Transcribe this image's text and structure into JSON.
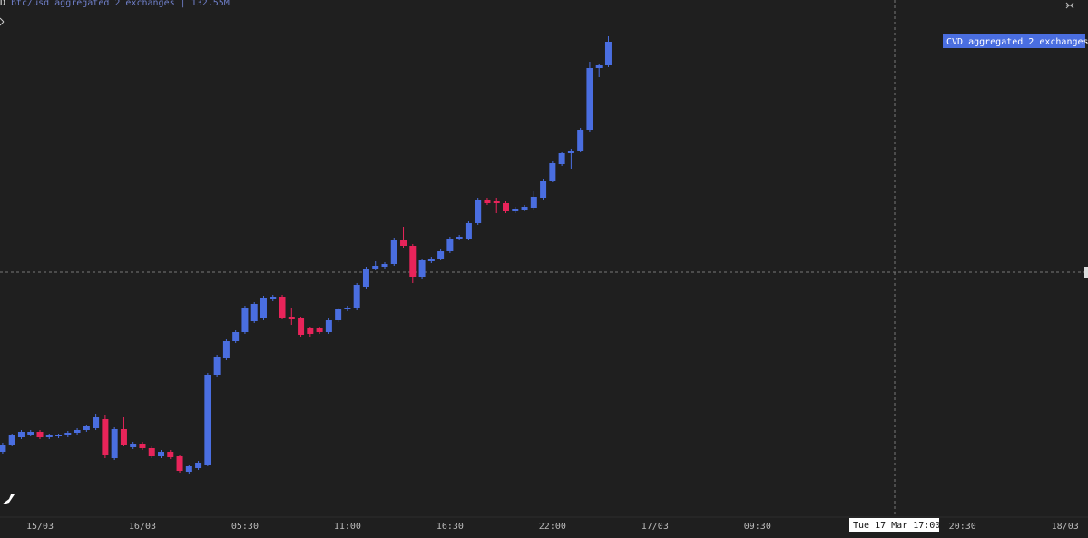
{
  "chart_data": {
    "type": "candlestick",
    "corner_label": "D",
    "series_label": "btc/usd aggregated 2 exchanges | 132.55M",
    "indicator_label": "CVD aggregated 2 exchanges",
    "crosshair_label": "Tue 17 Mar 17:00",
    "up_color": "#4a6ee0",
    "down_color": "#e8245a",
    "ylim": [
      0,
      560
    ],
    "categories": [
      null,
      null,
      null,
      null,
      "15/03",
      null,
      null,
      null,
      null,
      null,
      null,
      null,
      null,
      null,
      null,
      "16/03",
      null,
      null,
      null,
      null,
      null,
      null,
      null,
      null,
      null,
      null,
      "05:30",
      null,
      null,
      null,
      null,
      null,
      null,
      null,
      null,
      null,
      null,
      "11:00",
      null,
      null,
      null,
      null,
      null,
      null,
      null,
      null,
      null,
      null,
      "16:30",
      null,
      null,
      null,
      null,
      null,
      null,
      null,
      null,
      null,
      null,
      "22:00",
      null,
      null,
      null,
      null,
      null,
      null,
      null,
      null,
      null,
      null,
      "17/03",
      null,
      null,
      null,
      null,
      null,
      null,
      null,
      null,
      null,
      null,
      "09:30",
      null,
      null,
      null,
      null,
      null,
      null,
      null,
      null,
      null,
      null,
      null,
      null,
      null,
      null,
      null,
      null,
      null,
      null,
      null,
      null,
      null,
      "20:30",
      null,
      null,
      null,
      null,
      null,
      null,
      null,
      null,
      null,
      null,
      "18/03",
      null,
      null
    ],
    "open": [
      62,
      70,
      78,
      81,
      84,
      78,
      79,
      80,
      83,
      86,
      88,
      98,
      55,
      87,
      67,
      71,
      66,
      57,
      62,
      57,
      40,
      44,
      48,
      147,
      165,
      184,
      194,
      206,
      209,
      230,
      233,
      211,
      209,
      198,
      198,
      194,
      207,
      219,
      220,
      244,
      264,
      266,
      269,
      296,
      289,
      255,
      272,
      275,
      283,
      297,
      297,
      314,
      340,
      338,
      336,
      327,
      329,
      331,
      342,
      361,
      379,
      391,
      394,
      417,
      485,
      488,
      null,
      null,
      null,
      null,
      null,
      null,
      null,
      null,
      null,
      null,
      null,
      null,
      null,
      null,
      null,
      null,
      null,
      null,
      null,
      null,
      null,
      null,
      null,
      null,
      null,
      null,
      null,
      null,
      null,
      null,
      null,
      null,
      null,
      null,
      null,
      null,
      null,
      null,
      null,
      null,
      null,
      null,
      null,
      null,
      null,
      null,
      null,
      null,
      null,
      null,
      null
    ],
    "high": [
      72,
      82,
      86,
      86,
      86,
      82,
      82,
      85,
      88,
      92,
      104,
      103,
      89,
      100,
      73,
      73,
      68,
      64,
      64,
      59,
      48,
      52,
      149,
      169,
      186,
      196,
      223,
      227,
      234,
      235,
      235,
      220,
      211,
      200,
      200,
      209,
      221,
      223,
      248,
      266,
      272,
      271,
      298,
      310,
      291,
      275,
      277,
      285,
      299,
      301,
      316,
      342,
      342,
      342,
      338,
      332,
      334,
      350,
      363,
      382,
      393,
      396,
      419,
      492,
      490,
      520,
      null,
      null,
      null,
      null,
      null,
      null,
      null,
      null,
      null,
      null,
      null,
      null,
      null,
      null,
      null,
      null,
      null,
      null,
      null,
      null,
      null,
      null,
      null,
      null,
      null,
      null,
      null,
      null,
      null,
      null,
      null,
      null,
      null,
      null,
      null,
      null,
      null,
      null,
      null,
      null,
      null,
      null,
      null,
      null,
      null,
      null,
      null,
      null,
      null,
      null,
      null
    ],
    "low": [
      60,
      68,
      76,
      79,
      76,
      76,
      77,
      78,
      81,
      84,
      86,
      55,
      53,
      68,
      65,
      64,
      55,
      55,
      54,
      39,
      38,
      42,
      46,
      145,
      163,
      182,
      192,
      204,
      207,
      228,
      208,
      202,
      189,
      188,
      192,
      192,
      205,
      217,
      218,
      242,
      262,
      264,
      267,
      287,
      248,
      253,
      270,
      273,
      281,
      295,
      295,
      312,
      334,
      325,
      325,
      325,
      327,
      329,
      340,
      359,
      377,
      374,
      392,
      415,
      475,
      486,
      null,
      null,
      null,
      null,
      null,
      null,
      null,
      null,
      null,
      null,
      null,
      null,
      null,
      null,
      null,
      null,
      null,
      null,
      null,
      null,
      null,
      null,
      null,
      null,
      null,
      null,
      null,
      null,
      null,
      null,
      null,
      null,
      null,
      null,
      null,
      null,
      null,
      null,
      null,
      null,
      null,
      null,
      null,
      null,
      null,
      null,
      null,
      null,
      null,
      null,
      null
    ],
    "close": [
      70,
      80,
      84,
      84,
      78,
      80,
      80,
      83,
      86,
      90,
      100,
      58,
      87,
      70,
      71,
      66,
      57,
      62,
      56,
      41,
      46,
      50,
      147,
      167,
      184,
      194,
      221,
      225,
      232,
      233,
      210,
      208,
      191,
      192,
      194,
      207,
      219,
      221,
      246,
      264,
      267,
      269,
      296,
      289,
      255,
      273,
      275,
      283,
      297,
      299,
      314,
      340,
      336,
      336,
      327,
      330,
      332,
      343,
      361,
      380,
      391,
      394,
      417,
      485,
      488,
      514,
      null,
      null,
      null,
      null,
      null,
      null,
      null,
      null,
      null,
      null,
      null,
      null,
      null,
      null,
      null,
      null,
      null,
      null,
      null,
      null,
      null,
      null,
      null,
      null,
      null,
      null,
      null,
      null,
      null,
      null,
      null,
      null,
      null,
      null,
      null,
      null,
      null,
      null,
      null,
      null,
      null,
      null,
      null,
      null,
      null,
      null,
      null,
      null,
      null,
      null,
      null
    ]
  }
}
